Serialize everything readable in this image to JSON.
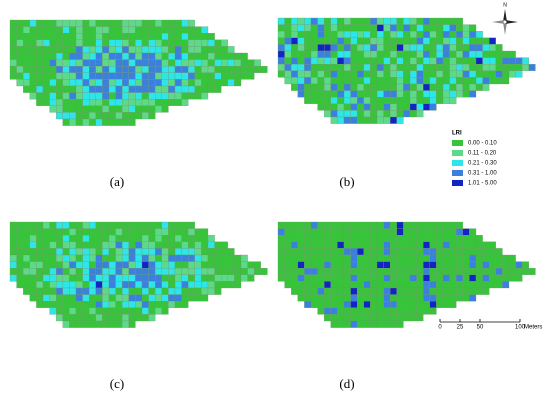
{
  "panels": [
    {
      "label": "(a)"
    },
    {
      "label": "(b)"
    },
    {
      "label": "(c)"
    },
    {
      "label": "(d)"
    }
  ],
  "legend": {
    "title": "LRI",
    "classes": [
      {
        "label": "0.00 - 0.10",
        "color": "#38c43a"
      },
      {
        "label": "0.11 - 0.20",
        "color": "#5ed98a"
      },
      {
        "label": "0.21 - 0.30",
        "color": "#2ee6e8"
      },
      {
        "label": "0.31 - 1.00",
        "color": "#3b80de"
      },
      {
        "label": "1.01 - 5.00",
        "color": "#1424c4"
      }
    ]
  },
  "north": "N",
  "scale_bar": {
    "ticks": [
      0,
      25,
      50,
      100
    ],
    "unit": "Meters"
  }
}
